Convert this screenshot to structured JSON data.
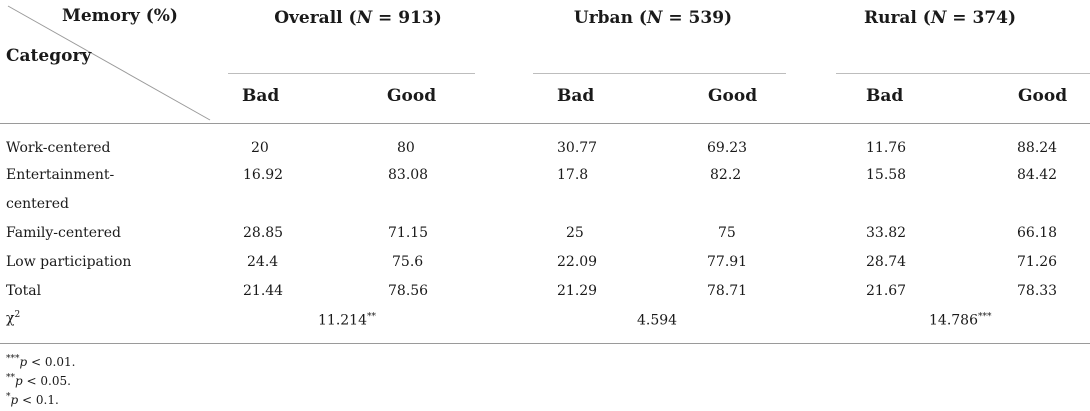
{
  "table": {
    "corner_top": "Memory (%)",
    "corner_bottom": "Category",
    "groups": [
      {
        "label": "Overall",
        "n": "913"
      },
      {
        "label": "Urban",
        "n": "539"
      },
      {
        "label": "Rural",
        "n": "374"
      }
    ],
    "n_symbol": "N",
    "eq": " = ",
    "subheaders": [
      "Bad",
      "Good",
      "Bad",
      "Good",
      "Bad",
      "Good"
    ],
    "rows": [
      {
        "label": "Work-centered",
        "values": [
          "20",
          "80",
          "30.77",
          "69.23",
          "11.76",
          "88.24"
        ]
      },
      {
        "label_lines": [
          "Entertainment-",
          "centered"
        ],
        "values": [
          "16.92",
          "83.08",
          "17.8",
          "82.2",
          "15.58",
          "84.42"
        ]
      },
      {
        "label": "Family-centered",
        "values": [
          "28.85",
          "71.15",
          "25",
          "75",
          "33.82",
          "66.18"
        ]
      },
      {
        "label": "Low participation",
        "values": [
          "24.4",
          "75.6",
          "22.09",
          "77.91",
          "28.74",
          "71.26"
        ]
      },
      {
        "label": "Total",
        "values": [
          "21.44",
          "78.56",
          "21.29",
          "78.71",
          "21.67",
          "78.33"
        ]
      }
    ],
    "chi": {
      "symbol": "χ",
      "sup": "2",
      "values": [
        "11.214",
        "4.594",
        "14.786"
      ],
      "stars": [
        "**",
        "",
        "***"
      ]
    }
  },
  "footnotes": [
    {
      "stars": "***",
      "var": "p",
      "text": " < 0.01."
    },
    {
      "stars": "**",
      "var": "p",
      "text": " < 0.05."
    },
    {
      "stars": "*",
      "var": "p",
      "text": " < 0.1."
    }
  ]
}
